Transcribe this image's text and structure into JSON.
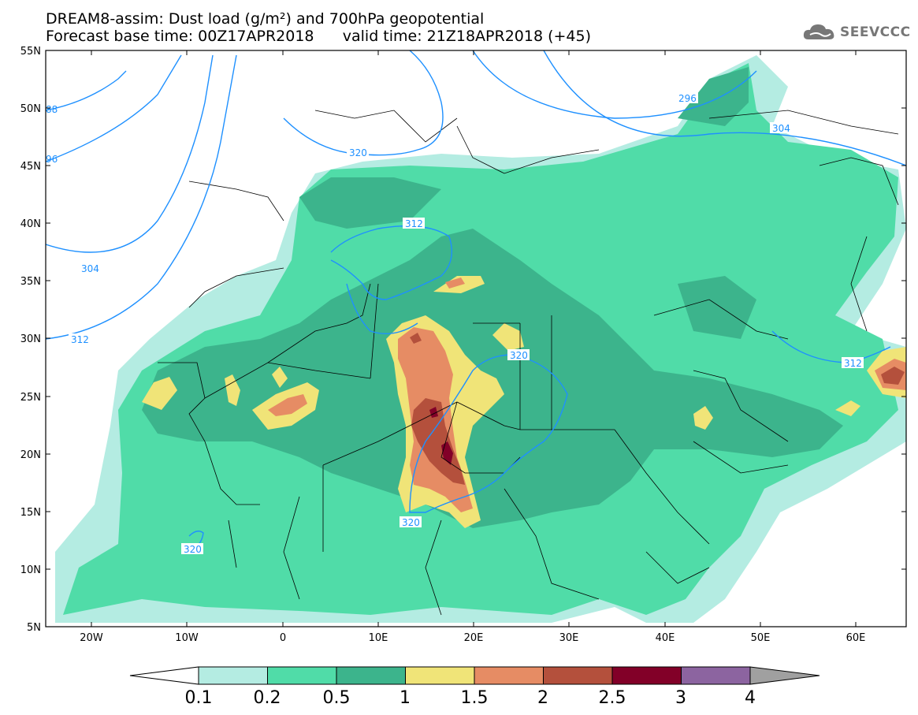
{
  "header": {
    "title_line1": "DREAM8-assim: Dust load (g/m²) and 700hPa geopotential",
    "title_line2": "Forecast base time: 00Z17APR2018      valid time: 21Z18APR2018 (+45)"
  },
  "logo": {
    "text": "SEEVCCC",
    "icon": "cloud-logo-icon"
  },
  "map": {
    "lat_labels": [
      "55N",
      "50N",
      "45N",
      "40N",
      "35N",
      "30N",
      "25N",
      "20N",
      "15N",
      "10N",
      "5N"
    ],
    "lon_labels": [
      "20W",
      "10W",
      "0",
      "10E",
      "20E",
      "30E",
      "40E",
      "50E",
      "60E"
    ],
    "extent": {
      "lon": [
        -25,
        65
      ],
      "lat": [
        5,
        55
      ]
    },
    "contour_labels": [
      "88",
      "96",
      "304",
      "312",
      "320",
      "312",
      "320",
      "296",
      "304",
      "312",
      "320"
    ]
  },
  "colorbar": {
    "labels": [
      "0.1",
      "0.2",
      "0.5",
      "1",
      "1.5",
      "2",
      "2.5",
      "3",
      "4"
    ],
    "colors": [
      "#ffffff",
      "#b4ece2",
      "#50dca8",
      "#3cb48c",
      "#f0e478",
      "#e68c64",
      "#b4503c",
      "#820028",
      "#8c64a0",
      "#a0a0a0"
    ]
  },
  "colors": {
    "contour_line": "#1e90ff",
    "border_line": "#000000"
  }
}
